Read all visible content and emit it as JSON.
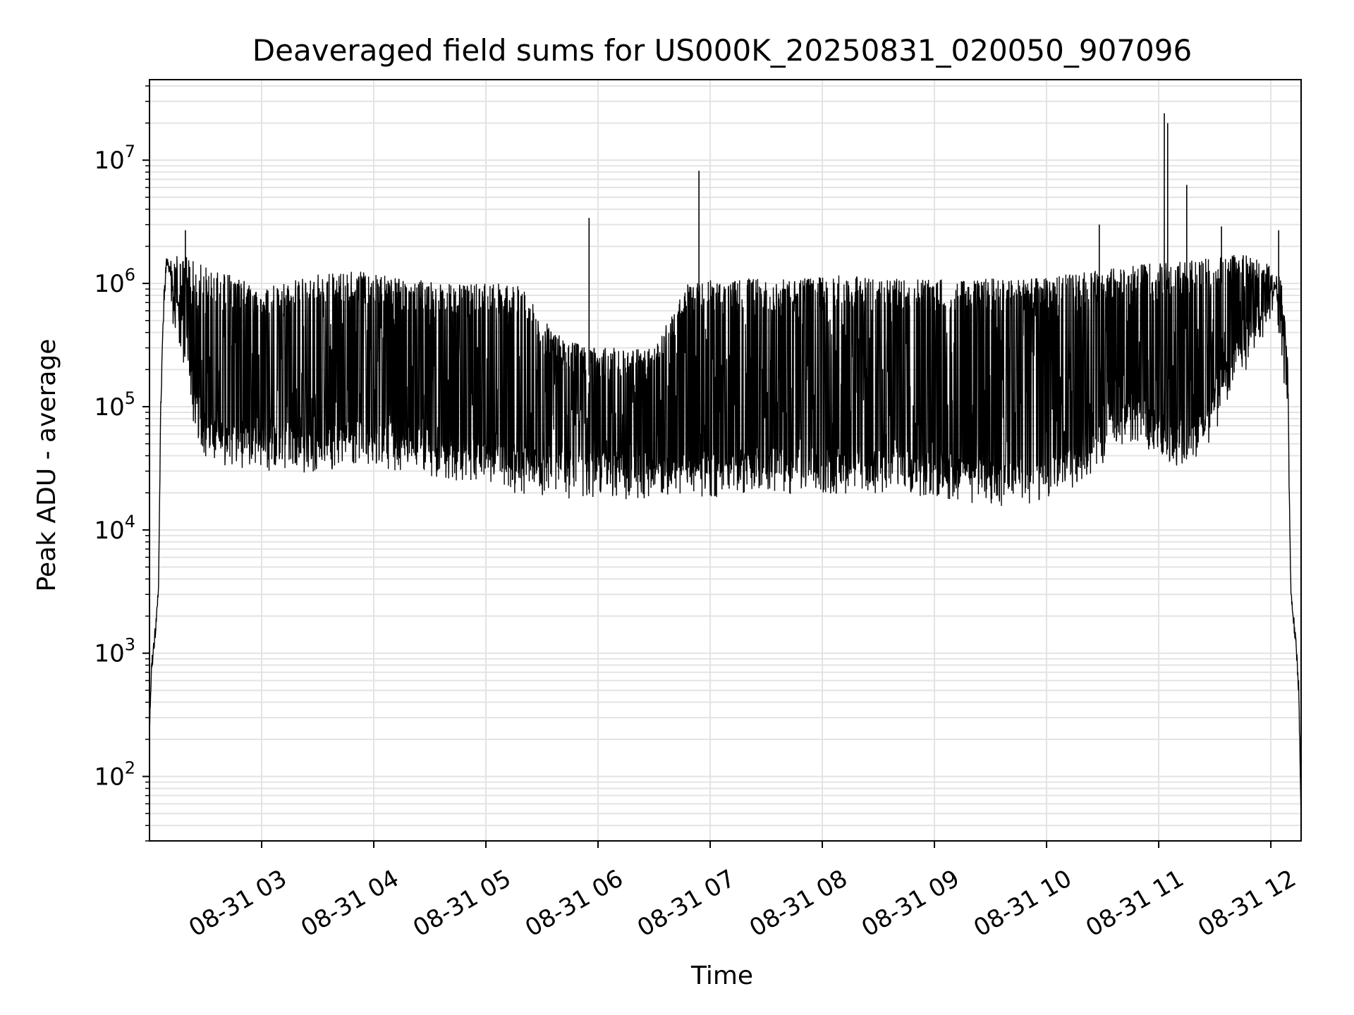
{
  "chart_data": {
    "type": "line",
    "title": "Deaveraged field sums for US000K_20250831_020050_907096",
    "xlabel": "Time",
    "ylabel": "Peak ADU - average",
    "yscale": "log",
    "ylim": [
      30,
      45000000
    ],
    "xlim_hours": [
      2.0,
      12.27
    ],
    "x_ticks": [
      {
        "hour": 3,
        "label": "08-31 03"
      },
      {
        "hour": 4,
        "label": "08-31 04"
      },
      {
        "hour": 5,
        "label": "08-31 05"
      },
      {
        "hour": 6,
        "label": "08-31 06"
      },
      {
        "hour": 7,
        "label": "08-31 07"
      },
      {
        "hour": 8,
        "label": "08-31 08"
      },
      {
        "hour": 9,
        "label": "08-31 09"
      },
      {
        "hour": 10,
        "label": "08-31 10"
      },
      {
        "hour": 11,
        "label": "08-31 11"
      },
      {
        "hour": 12,
        "label": "08-31 12"
      }
    ],
    "y_ticks": [
      {
        "value": 100,
        "base": "10",
        "exp": "2"
      },
      {
        "value": 1000,
        "base": "10",
        "exp": "3"
      },
      {
        "value": 10000,
        "base": "10",
        "exp": "4"
      },
      {
        "value": 100000,
        "base": "10",
        "exp": "5"
      },
      {
        "value": 1000000,
        "base": "10",
        "exp": "6"
      },
      {
        "value": 10000000,
        "base": "10",
        "exp": "7"
      }
    ],
    "grid": true,
    "line_color": "#000000",
    "grid_color": "#e3e3e3",
    "series": [
      {
        "x_hours": [
          2.0,
          2.02,
          2.05,
          2.08,
          2.1,
          2.13,
          2.15,
          2.18,
          2.2,
          2.25,
          2.3,
          2.35,
          2.4,
          2.5,
          2.6,
          2.7,
          2.8,
          3.0,
          3.2,
          3.5,
          3.8,
          4.0,
          4.3,
          4.6,
          5.0,
          5.3,
          5.6,
          5.9,
          6.2,
          6.5,
          6.8,
          7.1,
          7.4,
          7.8,
          8.2,
          8.6,
          9.0,
          9.3,
          9.6,
          9.9,
          10.2,
          10.5,
          10.8,
          11.0,
          11.2,
          11.4,
          11.6,
          11.8,
          12.0,
          12.05,
          12.1,
          12.15,
          12.18,
          12.2,
          12.23,
          12.25,
          12.27
        ],
        "y_baseline": [
          250,
          800,
          1500,
          3000,
          100000,
          800000,
          1400000,
          1400000,
          700000,
          500000,
          350000,
          200000,
          100000,
          60000,
          50000,
          45000,
          45000,
          45000,
          45000,
          45000,
          50000,
          50000,
          45000,
          40000,
          35000,
          30000,
          28000,
          27000,
          27000,
          27000,
          27000,
          28000,
          30000,
          30000,
          30000,
          30000,
          28000,
          25000,
          24000,
          25000,
          30000,
          50000,
          80000,
          60000,
          45000,
          60000,
          150000,
          300000,
          800000,
          1000000,
          300000,
          100000,
          3000,
          2000,
          1000,
          500,
          40
        ],
        "y_envelope": [
          250,
          800,
          1500,
          3000,
          100000,
          800000,
          1500000,
          1500000,
          1600000,
          1700000,
          1700000,
          1600000,
          1500000,
          1400000,
          1300000,
          1200000,
          1100000,
          1000000,
          1000000,
          1200000,
          1300000,
          1200000,
          1100000,
          1000000,
          1000000,
          1000000,
          400000,
          300000,
          300000,
          300000,
          1000000,
          1100000,
          1100000,
          1100000,
          1200000,
          1100000,
          1100000,
          1100000,
          1100000,
          1100000,
          1200000,
          1300000,
          1400000,
          1500000,
          1500000,
          1600000,
          1700000,
          1700000,
          1400000,
          1300000,
          1000000,
          300000,
          3000,
          2000,
          1000,
          500,
          40
        ]
      }
    ],
    "spikes": [
      {
        "hour": 2.32,
        "value": 2700000
      },
      {
        "hour": 5.92,
        "value": 3400000
      },
      {
        "hour": 6.9,
        "value": 8200000
      },
      {
        "hour": 10.47,
        "value": 3000000
      },
      {
        "hour": 11.05,
        "value": 24000000
      },
      {
        "hour": 11.08,
        "value": 20000000
      },
      {
        "hour": 11.25,
        "value": 6300000
      },
      {
        "hour": 11.56,
        "value": 2900000
      },
      {
        "hour": 12.07,
        "value": 2700000
      }
    ]
  }
}
